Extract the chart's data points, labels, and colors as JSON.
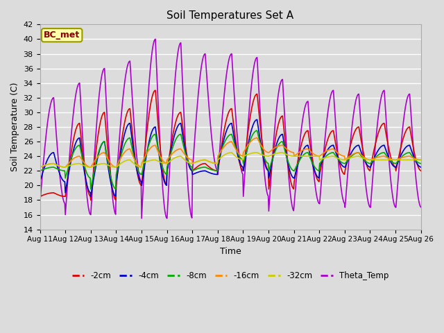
{
  "title": "Soil Temperatures Set A",
  "xlabel": "Time",
  "ylabel": "Soil Temperature (C)",
  "annotation": "BC_met",
  "ylim": [
    14,
    42
  ],
  "yticks": [
    14,
    16,
    18,
    20,
    22,
    24,
    26,
    28,
    30,
    32,
    34,
    36,
    38,
    40,
    42
  ],
  "x_labels": [
    "Aug 11",
    "Aug 12",
    "Aug 13",
    "Aug 14",
    "Aug 15",
    "Aug 16",
    "Aug 17",
    "Aug 18",
    "Aug 19",
    "Aug 20",
    "Aug 21",
    "Aug 22",
    "Aug 23",
    "Aug 24",
    "Aug 25",
    "Aug 26"
  ],
  "series": {
    "-2cm": {
      "color": "#dd0000",
      "lw": 1.2
    },
    "-4cm": {
      "color": "#0000cc",
      "lw": 1.2
    },
    "-8cm": {
      "color": "#00aa00",
      "lw": 1.2
    },
    "-16cm": {
      "color": "#ff8800",
      "lw": 1.2
    },
    "-32cm": {
      "color": "#cccc00",
      "lw": 1.2
    },
    "Theta_Temp": {
      "color": "#aa00cc",
      "lw": 1.2
    }
  },
  "bg_color": "#dcdcdc",
  "plot_bg": "#dcdcdc",
  "grid_color": "white",
  "figsize": [
    6.4,
    4.8
  ],
  "dpi": 100,
  "n_days": 15,
  "pts_per_day": 48,
  "cm2_daily": [
    19.0,
    28.5,
    30.0,
    30.5,
    33.0,
    30.0,
    23.0,
    30.5,
    32.5,
    29.5,
    27.5,
    27.5,
    28.0,
    28.5,
    28.0
  ],
  "cm2_min": [
    18.5,
    18.5,
    18.0,
    20.0,
    20.0,
    22.0,
    22.0,
    22.0,
    22.0,
    19.5,
    20.5,
    21.5,
    22.0,
    22.5,
    22.0
  ],
  "cm4_daily": [
    24.5,
    26.5,
    26.0,
    28.5,
    28.0,
    28.5,
    22.0,
    28.5,
    29.0,
    27.0,
    25.5,
    25.5,
    25.5,
    25.5,
    25.5
  ],
  "cm4_min": [
    20.5,
    19.0,
    18.5,
    20.5,
    20.0,
    22.0,
    21.5,
    22.5,
    22.0,
    21.0,
    21.0,
    22.5,
    22.5,
    22.5,
    22.5
  ],
  "cm8_daily": [
    22.5,
    25.5,
    26.0,
    26.5,
    27.0,
    27.0,
    22.5,
    27.0,
    27.5,
    26.0,
    24.5,
    24.5,
    24.5,
    24.5,
    24.5
  ],
  "cm8_min": [
    22.0,
    21.0,
    19.5,
    21.5,
    21.5,
    22.5,
    22.0,
    23.5,
    23.0,
    22.0,
    22.0,
    23.0,
    23.0,
    23.0,
    23.0
  ],
  "cm16_daily": [
    23.0,
    24.0,
    24.5,
    25.0,
    25.5,
    25.0,
    23.5,
    26.0,
    26.5,
    25.5,
    25.0,
    25.0,
    24.5,
    24.0,
    24.0
  ],
  "cm16_min": [
    22.5,
    22.5,
    22.5,
    22.5,
    23.0,
    23.5,
    23.0,
    24.0,
    24.5,
    24.5,
    24.0,
    24.0,
    23.5,
    23.5,
    23.5
  ],
  "cm32_daily": [
    23.0,
    23.0,
    23.0,
    23.5,
    23.5,
    24.0,
    23.5,
    24.5,
    24.5,
    24.5,
    24.0,
    24.0,
    24.0,
    23.5,
    23.5
  ],
  "cm32_min": [
    22.5,
    22.5,
    22.5,
    22.5,
    23.0,
    23.0,
    23.0,
    23.5,
    24.0,
    24.0,
    24.0,
    23.5,
    23.5,
    23.5,
    23.5
  ],
  "theta_daily": [
    32.0,
    34.0,
    36.0,
    37.0,
    40.0,
    39.5,
    38.0,
    38.0,
    37.5,
    34.5,
    31.5,
    33.0,
    32.5,
    33.0,
    32.5
  ],
  "theta_min": [
    17.5,
    16.0,
    16.0,
    20.5,
    15.5,
    15.5,
    22.0,
    21.5,
    18.5,
    16.5,
    17.5,
    17.5,
    17.0,
    17.0,
    17.0
  ],
  "peak_pos": [
    0.55,
    0.58,
    0.55,
    0.55,
    0.55,
    0.55,
    0.52,
    0.55,
    0.55,
    0.55,
    0.55,
    0.55,
    0.55,
    0.55,
    0.55
  ]
}
